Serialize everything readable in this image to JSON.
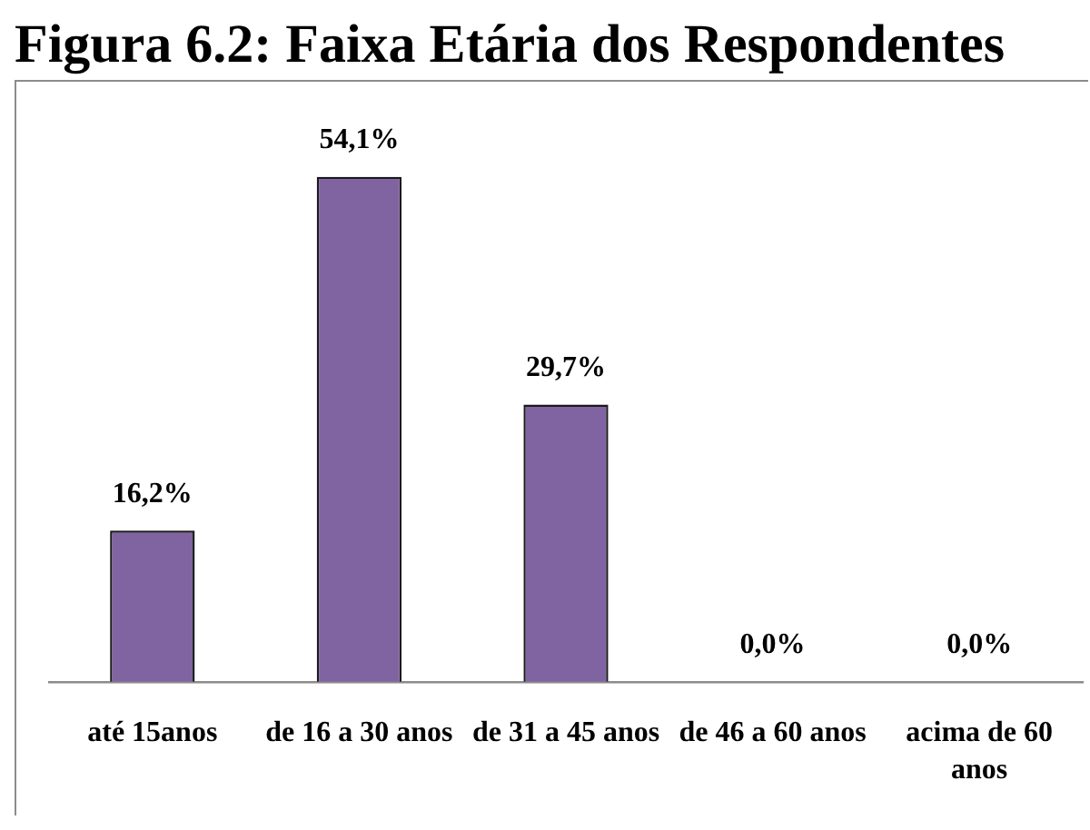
{
  "chart_data": {
    "type": "bar",
    "title": "Figura 6.2: Faixa Etária dos Respondentes",
    "categories": [
      "até 15anos",
      "de 16 a 30 anos",
      "de 31 a 45 anos",
      "de 46 a 60 anos",
      "acima de 60 anos"
    ],
    "values": [
      16.2,
      54.1,
      29.7,
      0.0,
      0.0
    ],
    "color": "#8064a2",
    "value_labels": [
      "16,2%",
      "54,1%",
      "29,7%",
      "0,0%",
      "0,0%"
    ]
  }
}
